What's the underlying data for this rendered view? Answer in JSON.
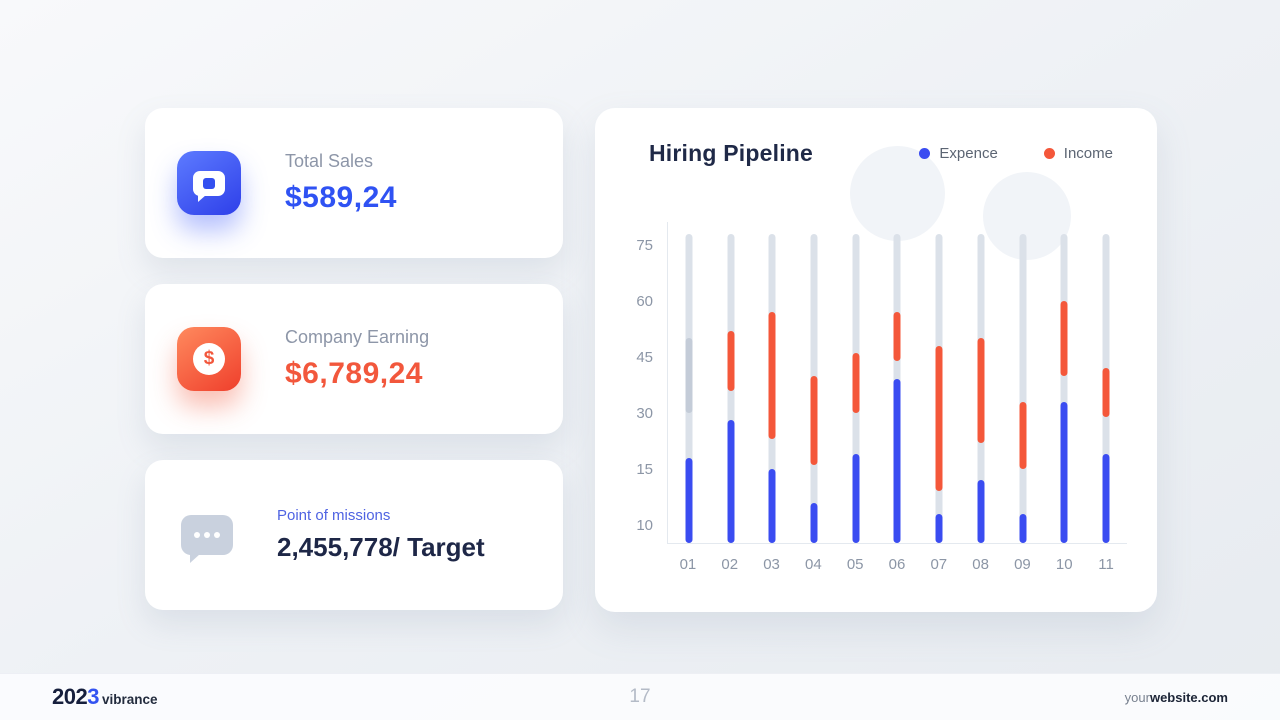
{
  "slide": {
    "stats_cards": [
      {
        "label": "Total Sales",
        "value": "$589,24",
        "accent_color": "#2f52f3",
        "icon": "chat-sales-icon"
      },
      {
        "label": "Company Earning",
        "value": "$6,789,24",
        "accent_color": "#f2573c",
        "icon": "dollar-icon"
      },
      {
        "label": "Point of missions",
        "value": "2,455,778/ Target",
        "accent_color": "#4f63e2",
        "icon": "chat-dots-icon"
      }
    ]
  },
  "chart_data": {
    "type": "bar",
    "title": "Hiring Pipeline",
    "xlabel": "",
    "ylabel": "",
    "categories": [
      "01",
      "02",
      "03",
      "04",
      "05",
      "06",
      "07",
      "08",
      "09",
      "10",
      "11"
    ],
    "y_ticks": [
      10,
      15,
      30,
      45,
      60,
      75
    ],
    "ylim": [
      8,
      78
    ],
    "grid": false,
    "legend_position": "top-right",
    "track": {
      "color": "#dbe1e9",
      "max": 78
    },
    "muted_color": "#c4ccd8",
    "muted_ranges": [
      [
        30,
        50
      ],
      null,
      null,
      null,
      null,
      null,
      null,
      null,
      null,
      null,
      null
    ],
    "series": [
      {
        "name": "Expence",
        "type": "column",
        "color": "#3a4cf1",
        "values": [
          18,
          28,
          15,
          12,
          19,
          39,
          11,
          14,
          11,
          33,
          19
        ]
      },
      {
        "name": "Income",
        "type": "floating-column",
        "color": "#f4573a",
        "ranges": [
          null,
          [
            36,
            52
          ],
          [
            23,
            57
          ],
          [
            16,
            40
          ],
          [
            30,
            46
          ],
          [
            44,
            57
          ],
          [
            13,
            48
          ],
          [
            22,
            50
          ],
          [
            15,
            33
          ],
          [
            40,
            60
          ],
          [
            29,
            42
          ]
        ]
      }
    ]
  },
  "footer": {
    "logo_year_prefix": "202",
    "logo_year_accent": "3",
    "logo_brand": "vibrance",
    "page_number": "17",
    "website_prefix": "your",
    "website_rest": "website.com"
  }
}
